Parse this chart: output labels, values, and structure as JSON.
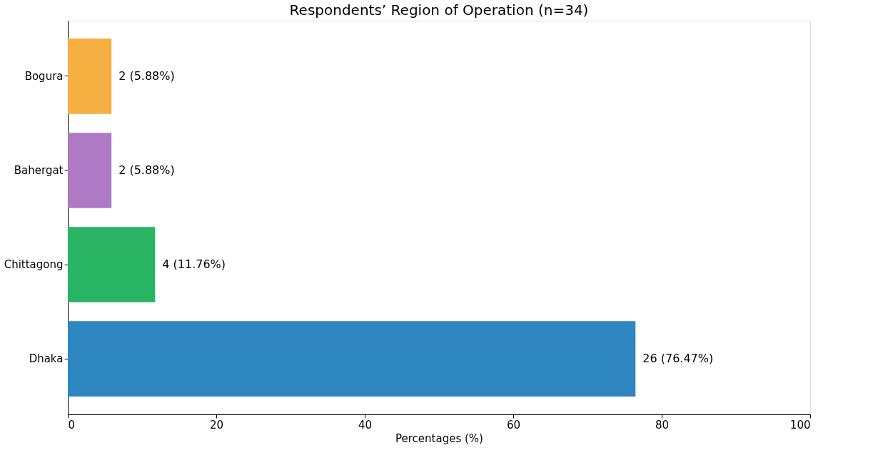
{
  "chart_data": {
    "type": "bar",
    "orientation": "horizontal",
    "title": "Respondents’ Region of Operation (n=34)",
    "xlabel": "Percentages (%)",
    "categories": [
      "Bogura",
      "Bahergat",
      "Chittagong",
      "Dhaka"
    ],
    "values": [
      5.88,
      5.88,
      11.76,
      76.47
    ],
    "colors": [
      "#f5b041",
      "#af7ac5",
      "#28b463",
      "#2e86c1"
    ],
    "value_labels": [
      "2 (5.88%)",
      "2 (5.88%)",
      "4 (11.76%)",
      "26 (76.47%)"
    ],
    "xlim": [
      0,
      100
    ],
    "xticks": [
      0,
      20,
      40,
      60,
      80,
      100
    ]
  }
}
